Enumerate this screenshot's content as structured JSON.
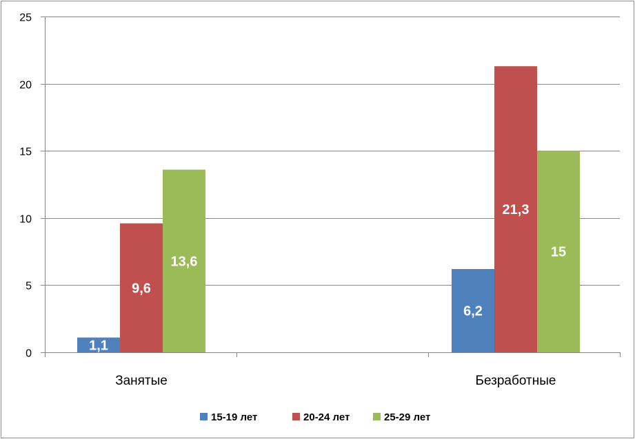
{
  "chart_data": {
    "type": "bar",
    "title": "",
    "xlabel": "",
    "ylabel": "",
    "categories": [
      "Занятые",
      "Безработные"
    ],
    "series": [
      {
        "name": "15-19 лет",
        "color": "#4f81bd",
        "values": [
          1.1,
          6.2
        ],
        "labels": [
          "1,1",
          "6,2"
        ]
      },
      {
        "name": "20-24 лет",
        "color": "#c0504d",
        "values": [
          9.6,
          21.3
        ],
        "labels": [
          "9,6",
          "21,3"
        ]
      },
      {
        "name": "25-29 лет",
        "color": "#9bbb59",
        "values": [
          13.6,
          15
        ],
        "labels": [
          "13,6",
          "15"
        ]
      }
    ],
    "ylim": [
      0,
      25
    ],
    "yticks": [
      0,
      5,
      10,
      15,
      20,
      25
    ],
    "ytick_labels": [
      "0",
      "5",
      "10",
      "15",
      "20",
      "25"
    ],
    "grid": true,
    "legend": "bottom",
    "gridline_color": "#868686"
  }
}
